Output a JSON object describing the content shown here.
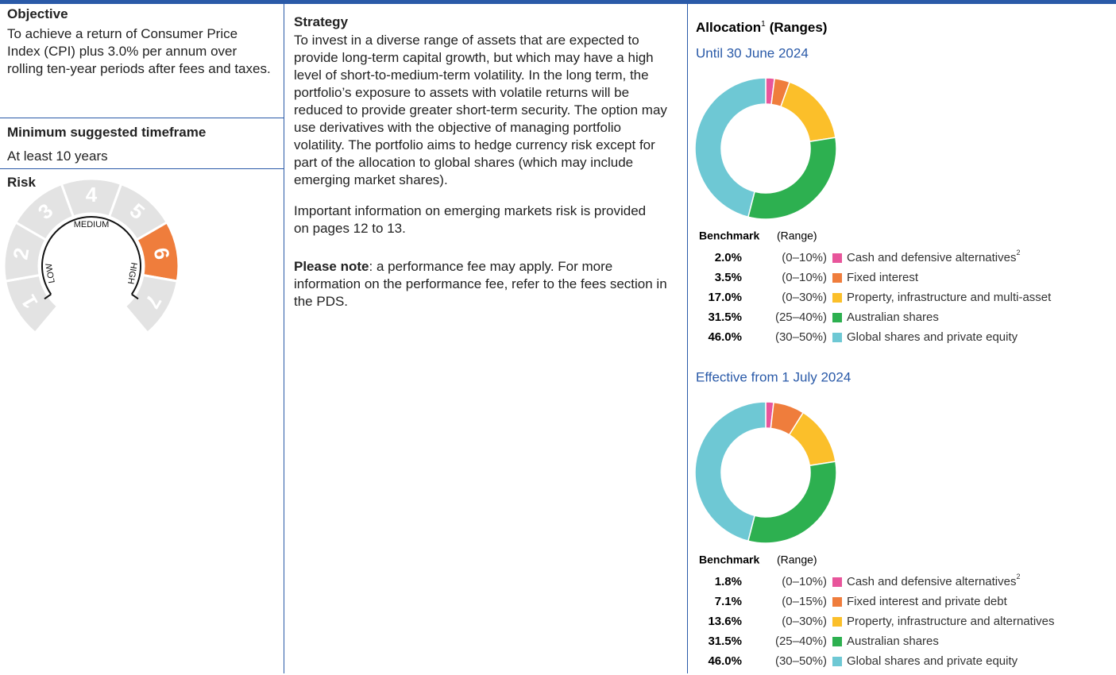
{
  "objective": {
    "heading": "Objective",
    "text": "To achieve a return of Consumer Price Index (CPI) plus 3.0% per annum over rolling ten-year periods after fees and taxes."
  },
  "timeframe": {
    "heading": "Minimum suggested timeframe",
    "text": "At least 10 years"
  },
  "risk": {
    "heading": "Risk",
    "levels": [
      1,
      2,
      3,
      4,
      5,
      6,
      7
    ],
    "level": 6,
    "scale_labels": [
      "LOW",
      "MEDIUM",
      "HIGH"
    ]
  },
  "strategy": {
    "heading": "Strategy",
    "paragraphs": [
      "To invest in a diverse range of assets that are expected to provide long-term capital growth, but which may have a high level of short-to-medium-term volatility. In the long term, the portfolio’s exposure to assets with volatile returns will be reduced to provide greater short-term security. The option may use derivatives with the objective of managing portfolio volatility. The portfolio aims to hedge currency risk except for part of the allocation to global shares (which may include emerging market shares).",
      "Important information on emerging markets risk is provided on pages 12 to 13."
    ],
    "note_bold": "Please note",
    "note_text": ": a performance fee may apply. For more information on the performance fee, refer to the fees section in the PDS."
  },
  "allocation": {
    "title": "Allocation",
    "title_note": "1",
    "title_suffix": "(Ranges)"
  },
  "chart_data": [
    {
      "type": "donut",
      "title": "Until 30 June 2024",
      "header": [
        "Benchmark",
        "(Range)"
      ],
      "categories": [
        "Cash and defensive alternatives",
        "Fixed interest",
        "Property, infrastructure and multi-asset",
        "Australian shares",
        "Global shares and private equity"
      ],
      "category_footnotes": [
        "2",
        null,
        null,
        null,
        null
      ],
      "values": [
        2.0,
        3.5,
        17.0,
        31.5,
        46.0
      ],
      "value_labels": [
        "2.0%",
        "3.5%",
        "17.0%",
        "31.5%",
        "46.0%"
      ],
      "ranges": [
        "(0–10%)",
        "(0–10%)",
        "(0–30%)",
        "(25–40%)",
        "(30–50%)"
      ],
      "colors": [
        "#e8559b",
        "#ef7d3c",
        "#fbbf2a",
        "#2db050",
        "#6ec8d4"
      ]
    },
    {
      "type": "donut",
      "title": "Effective from 1 July 2024",
      "header": [
        "Benchmark",
        "(Range)"
      ],
      "categories": [
        "Cash and defensive alternatives",
        "Fixed interest and private debt",
        "Property, infrastructure and alternatives",
        "Australian shares",
        "Global shares and private equity"
      ],
      "category_footnotes": [
        "2",
        null,
        null,
        null,
        null
      ],
      "values": [
        1.8,
        7.1,
        13.6,
        31.5,
        46.0
      ],
      "value_labels": [
        "1.8%",
        "7.1%",
        "13.6%",
        "31.5%",
        "46.0%"
      ],
      "ranges": [
        "(0–10%)",
        "(0–15%)",
        "(0–30%)",
        "(25–40%)",
        "(30–50%)"
      ],
      "colors": [
        "#e8559b",
        "#ef7d3c",
        "#fbbf2a",
        "#2db050",
        "#6ec8d4"
      ]
    }
  ]
}
